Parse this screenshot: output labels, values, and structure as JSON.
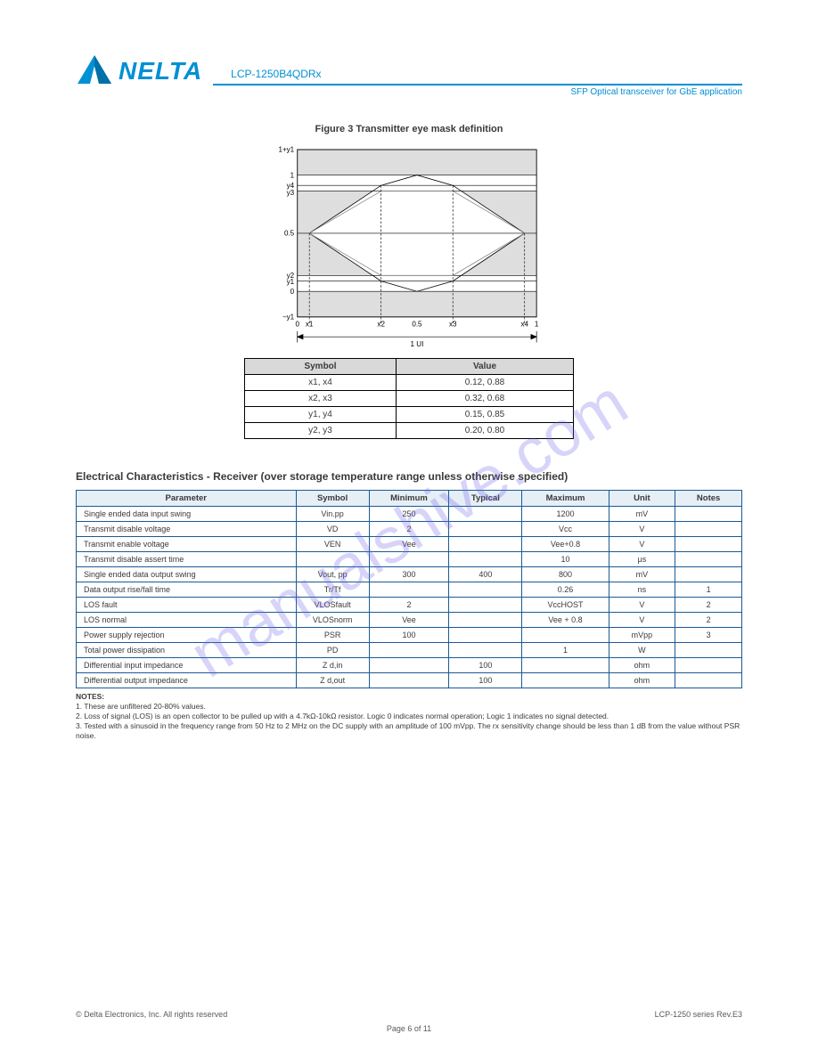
{
  "header": {
    "product": "LCP-1250B4QDRx",
    "subtitle": "SFP Optical transceiver for GbE application",
    "logo_color": "#0090d4"
  },
  "figure": {
    "caption": "Figure 3  Transmitter eye mask definition",
    "y_labels": [
      "1+y1",
      "1",
      "y4",
      "y3",
      "0.5",
      "y2",
      "y1",
      "0",
      "−y1"
    ],
    "x_labels": [
      "0",
      "x1",
      "x2",
      "0.5",
      "x3",
      "x4",
      "1"
    ],
    "bottom_label": "1 UI",
    "bg_color": "#dedede",
    "line_color": "#000000"
  },
  "eye_table": {
    "headers": [
      "Symbol",
      "Value"
    ],
    "rows": [
      [
        "x1, x4",
        "0.12, 0.88"
      ],
      [
        "x2, x3",
        "0.32, 0.68"
      ],
      [
        "y1, y4",
        "0.15, 0.85"
      ],
      [
        "y2, y3",
        "0.20, 0.80"
      ]
    ]
  },
  "section_title": "Electrical Characteristics - Receiver (over storage temperature range unless otherwise specified)",
  "elec_table": {
    "headers": [
      "Parameter",
      "Symbol",
      "Minimum",
      "Typical",
      "Maximum",
      "Unit",
      "Notes"
    ],
    "rows": [
      [
        "Single ended data input swing",
        "Vin.pp",
        "250",
        "",
        "1200",
        "mV",
        ""
      ],
      [
        "Transmit disable voltage",
        "VD",
        "2",
        "",
        "Vcc",
        "V",
        ""
      ],
      [
        "Transmit enable voltage",
        "VEN",
        "Vee",
        "",
        "Vee+0.8",
        "V",
        ""
      ],
      [
        "Transmit disable assert time",
        "",
        "",
        "",
        "10",
        "μs",
        ""
      ],
      [
        "Single ended data output swing",
        "Vout, pp",
        "300",
        "400",
        "800",
        "mV",
        ""
      ],
      [
        "Data output rise/fall time",
        "Tr/Tf",
        "",
        "",
        "0.26",
        "ns",
        "1"
      ],
      [
        "LOS fault",
        "VLOSfault",
        "2",
        "",
        "VccHOST",
        "V",
        "2"
      ],
      [
        "LOS normal",
        "VLOSnorm",
        "Vee",
        "",
        "Vee + 0.8",
        "V",
        "2"
      ],
      [
        "Power supply rejection",
        "PSR",
        "100",
        "",
        "",
        "mVpp",
        "3"
      ],
      [
        "Total power dissipation",
        "PD",
        "",
        "",
        "1",
        "W",
        ""
      ],
      [
        "Differential input impedance",
        "Z d,in",
        "",
        "100",
        "",
        "ohm",
        ""
      ],
      [
        "Differential output impedance",
        "Z d,out",
        "",
        "100",
        "",
        "ohm",
        ""
      ]
    ]
  },
  "notes": [
    "1. These are unfiltered 20-80% values.",
    "2. Loss of signal (LOS) is an open collector to be pulled up with a 4.7kΩ-10kΩ resistor. Logic 0 indicates normal operation; Logic 1 indicates no signal detected.",
    "3. Tested with a sinusoid in the frequency range from 50 Hz to 2 MHz on the DC supply with an amplitude of 100 mVpp. The rx sensitivity change should be less than 1 dB from the value without PSR noise."
  ],
  "footer": {
    "left": "© Delta Electronics, Inc. All rights reserved",
    "right": "LCP-1250 series Rev.E3",
    "center": "Page 6 of 11"
  },
  "watermark": "manualshive.com"
}
